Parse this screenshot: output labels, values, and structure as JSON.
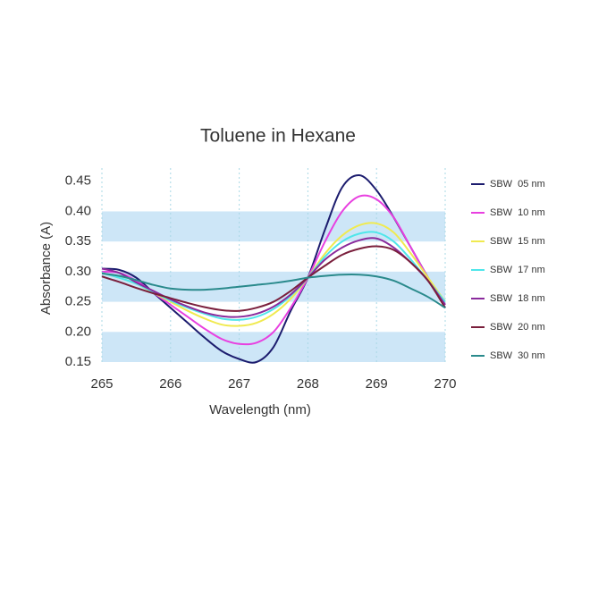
{
  "chart_data": {
    "type": "line",
    "title": "Toluene in Hexane",
    "x_label": "Wavelength (nm)",
    "y_label": "Absorbance (A)",
    "x": [
      265,
      265.25,
      265.5,
      265.75,
      266,
      266.25,
      266.5,
      266.75,
      267,
      267.25,
      267.5,
      267.75,
      268,
      268.25,
      268.5,
      268.75,
      269,
      269.25,
      269.5,
      269.75,
      270
    ],
    "xlim": [
      265,
      270
    ],
    "xticks": [
      265,
      266,
      267,
      268,
      269,
      270
    ],
    "ylim": [
      0.15,
      0.46
    ],
    "yticks": [
      0.15,
      {
        "value": 0.2,
        "label": "0.20"
      },
      0.25,
      {
        "value": 0.3,
        "label": "0.30"
      },
      0.35,
      {
        "value": 0.4,
        "label": "0.40"
      },
      0.45
    ],
    "band_color": "#cde6f7",
    "grid": true,
    "legend": "right",
    "series": [
      {
        "name": "SBW  05 nm",
        "color": "#1c1c6e",
        "values": [
          0.305,
          0.303,
          0.29,
          0.265,
          0.24,
          0.215,
          0.19,
          0.168,
          0.155,
          0.15,
          0.175,
          0.235,
          0.29,
          0.37,
          0.44,
          0.46,
          0.435,
          0.39,
          0.34,
          0.29,
          0.24
        ]
      },
      {
        "name": "SBW  10 nm",
        "color": "#e840e0",
        "values": [
          0.3,
          0.298,
          0.285,
          0.265,
          0.245,
          0.225,
          0.205,
          0.188,
          0.18,
          0.182,
          0.2,
          0.24,
          0.29,
          0.35,
          0.4,
          0.425,
          0.42,
          0.39,
          0.34,
          0.29,
          0.245
        ]
      },
      {
        "name": "SBW  15 nm",
        "color": "#f0ea50",
        "values": [
          0.298,
          0.29,
          0.28,
          0.265,
          0.25,
          0.235,
          0.222,
          0.212,
          0.21,
          0.215,
          0.23,
          0.255,
          0.29,
          0.33,
          0.36,
          0.377,
          0.38,
          0.365,
          0.33,
          0.29,
          0.25
        ]
      },
      {
        "name": "SBW  17 nm",
        "color": "#4fe6ea",
        "values": [
          0.298,
          0.29,
          0.28,
          0.266,
          0.252,
          0.24,
          0.23,
          0.222,
          0.22,
          0.225,
          0.238,
          0.26,
          0.29,
          0.325,
          0.35,
          0.363,
          0.365,
          0.35,
          0.32,
          0.285,
          0.25
        ]
      },
      {
        "name": "SBW  18 nm",
        "color": "#8a2a9c",
        "values": [
          0.305,
          0.298,
          0.282,
          0.268,
          0.254,
          0.242,
          0.232,
          0.226,
          0.225,
          0.23,
          0.242,
          0.262,
          0.29,
          0.32,
          0.34,
          0.352,
          0.355,
          0.34,
          0.315,
          0.285,
          0.245
        ]
      },
      {
        "name": "SBW  20 nm",
        "color": "#7a1f3c",
        "values": [
          0.292,
          0.283,
          0.273,
          0.264,
          0.256,
          0.248,
          0.241,
          0.236,
          0.235,
          0.24,
          0.25,
          0.268,
          0.29,
          0.31,
          0.328,
          0.338,
          0.342,
          0.336,
          0.315,
          0.285,
          0.24
        ]
      },
      {
        "name": "SBW  30 nm",
        "color": "#2a8a8c",
        "values": [
          0.297,
          0.293,
          0.286,
          0.278,
          0.272,
          0.27,
          0.27,
          0.272,
          0.275,
          0.278,
          0.281,
          0.285,
          0.29,
          0.293,
          0.295,
          0.295,
          0.292,
          0.285,
          0.272,
          0.258,
          0.24
        ]
      }
    ]
  }
}
